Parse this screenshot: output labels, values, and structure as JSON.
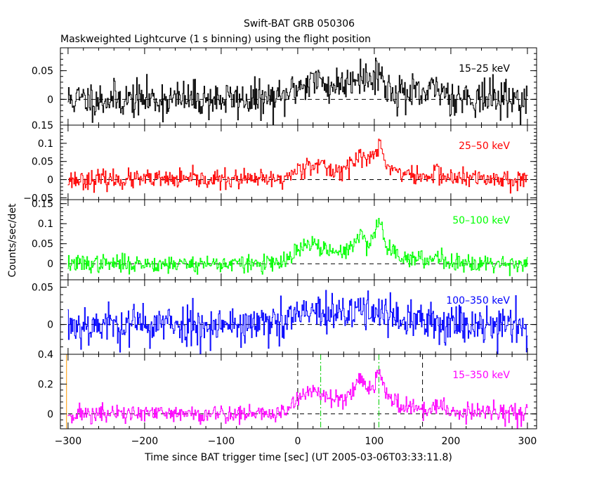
{
  "title": "Swift-BAT GRB 050306",
  "subtitle": "Maskweighted Lightcurve (1 s binning) using the flight position",
  "chart_data": {
    "type": "line",
    "xlabel": "Time since BAT trigger time [sec] (UT 2005-03-06T03:33:11.8)",
    "ylabel": "Counts/sec/det",
    "xlim": [
      -310,
      312
    ],
    "xticks": [
      -300,
      -200,
      -100,
      0,
      100,
      200,
      300
    ],
    "xtick_labels": [
      "−300",
      "−200",
      "−100",
      "0",
      "100",
      "200",
      "300"
    ],
    "panels": [
      {
        "name": "15–25 keV",
        "color": "#000000",
        "ylim": [
          -0.045,
          0.09
        ],
        "yticks": [
          0,
          0.05
        ],
        "ytick_labels": [
          "0",
          "0.05"
        ],
        "noise": 0.016,
        "seed": 11,
        "profile": [
          [
            -300,
            0
          ],
          [
            -20,
            0
          ],
          [
            -5,
            0.018
          ],
          [
            20,
            0.035
          ],
          [
            40,
            0.022
          ],
          [
            60,
            0.028
          ],
          [
            80,
            0.045
          ],
          [
            95,
            0.03
          ],
          [
            105,
            0.055
          ],
          [
            115,
            0.02
          ],
          [
            140,
            0.01
          ],
          [
            160,
            0.005
          ],
          [
            185,
            0.02
          ],
          [
            200,
            0.005
          ],
          [
            300,
            0
          ]
        ]
      },
      {
        "name": "25–50 keV",
        "color": "#ff0000",
        "ylim": [
          -0.055,
          0.15
        ],
        "yticks": [
          -0.05,
          0,
          0.05,
          0.1,
          0.15
        ],
        "ytick_labels": [
          "−0.05",
          "0",
          "0.05",
          "0.1",
          "0.15"
        ],
        "noise": 0.013,
        "seed": 23,
        "profile": [
          [
            -300,
            0
          ],
          [
            -20,
            0
          ],
          [
            -5,
            0.02
          ],
          [
            15,
            0.045
          ],
          [
            30,
            0.04
          ],
          [
            45,
            0.022
          ],
          [
            60,
            0.03
          ],
          [
            75,
            0.05
          ],
          [
            82,
            0.07
          ],
          [
            92,
            0.05
          ],
          [
            100,
            0.07
          ],
          [
            107,
            0.1
          ],
          [
            115,
            0.04
          ],
          [
            140,
            0.015
          ],
          [
            170,
            0.005
          ],
          [
            182,
            0.025
          ],
          [
            195,
            0.005
          ],
          [
            300,
            0
          ]
        ]
      },
      {
        "name": "50–100 keV",
        "color": "#00ff00",
        "ylim": [
          -0.04,
          0.16
        ],
        "yticks": [
          0,
          0.05,
          0.1,
          0.15
        ],
        "ytick_labels": [
          "0",
          "0.05",
          "0.1",
          "0.15"
        ],
        "noise": 0.011,
        "seed": 37,
        "profile": [
          [
            -300,
            0
          ],
          [
            -20,
            0
          ],
          [
            -5,
            0.025
          ],
          [
            15,
            0.05
          ],
          [
            30,
            0.042
          ],
          [
            45,
            0.025
          ],
          [
            60,
            0.03
          ],
          [
            75,
            0.055
          ],
          [
            82,
            0.07
          ],
          [
            92,
            0.05
          ],
          [
            100,
            0.075
          ],
          [
            107,
            0.11
          ],
          [
            115,
            0.045
          ],
          [
            140,
            0.015
          ],
          [
            170,
            0.005
          ],
          [
            182,
            0.025
          ],
          [
            195,
            0.005
          ],
          [
            300,
            0
          ]
        ]
      },
      {
        "name": "100–350 keV",
        "color": "#0000ff",
        "ylim": [
          -0.04,
          0.06
        ],
        "yticks": [
          0,
          0.05
        ],
        "ytick_labels": [
          "0",
          "0.05"
        ],
        "noise": 0.014,
        "seed": 53,
        "profile": [
          [
            -300,
            0
          ],
          [
            -20,
            0
          ],
          [
            -5,
            0.01
          ],
          [
            20,
            0.018
          ],
          [
            40,
            0.01
          ],
          [
            60,
            0.012
          ],
          [
            80,
            0.022
          ],
          [
            95,
            0.015
          ],
          [
            105,
            0.028
          ],
          [
            115,
            0.01
          ],
          [
            140,
            0.004
          ],
          [
            300,
            0
          ]
        ]
      },
      {
        "name": "15–350 keV",
        "color": "#ff00ff",
        "ylim": [
          -0.1,
          0.4
        ],
        "yticks": [
          0,
          0.2,
          0.4
        ],
        "ytick_labels": [
          "0",
          "0.2",
          "0.4"
        ],
        "noise": 0.032,
        "seed": 71,
        "profile": [
          [
            -300,
            0
          ],
          [
            -20,
            0
          ],
          [
            -5,
            0.08
          ],
          [
            15,
            0.16
          ],
          [
            30,
            0.14
          ],
          [
            45,
            0.09
          ],
          [
            60,
            0.11
          ],
          [
            75,
            0.18
          ],
          [
            82,
            0.24
          ],
          [
            92,
            0.17
          ],
          [
            100,
            0.22
          ],
          [
            107,
            0.3
          ],
          [
            115,
            0.12
          ],
          [
            140,
            0.05
          ],
          [
            170,
            0.015
          ],
          [
            182,
            0.07
          ],
          [
            195,
            0.015
          ],
          [
            300,
            0
          ]
        ],
        "markers": [
          {
            "x": 0,
            "style": "dash",
            "color": "#000000"
          },
          {
            "x": 30,
            "style": "dashdot",
            "color": "#00cc00"
          },
          {
            "x": 106,
            "style": "dashdot",
            "color": "#00cc00"
          },
          {
            "x": 163,
            "style": "dash",
            "color": "#000000"
          },
          {
            "x": -302,
            "style": "solid",
            "color": "#ff9900"
          }
        ]
      }
    ]
  }
}
